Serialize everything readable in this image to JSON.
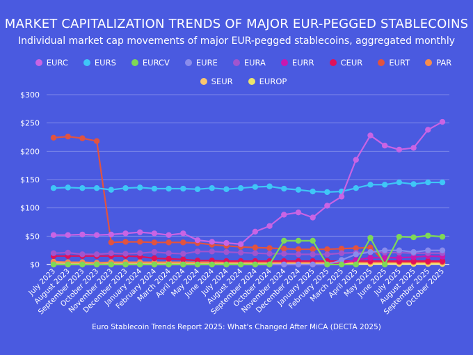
{
  "chart_data": {
    "type": "line",
    "title": "MARKET CAPITALIZATION TRENDS OF MAJOR EUR-PEGGED STABLECOINS",
    "subtitle": "Individual market cap movements of major EUR-pegged stablecoins, aggregated monthly",
    "footer": "Euro Stablecoin Trends Report 2025: What's Changed After MiCA (DECTA 2025)",
    "xlabel": "",
    "ylabel": "",
    "ylim": [
      0,
      300
    ],
    "yticks": [
      "$0",
      "$50",
      "$100",
      "$150",
      "$200",
      "$250",
      "$300"
    ],
    "grid": true,
    "legend_placement": "top",
    "x": [
      "July 2023",
      "August 2023",
      "September 2023",
      "October 2023",
      "November 2023",
      "December 2023",
      "January 2024",
      "February 2024",
      "March 2024",
      "April 2024",
      "May 2024",
      "June 2024",
      "July 2024",
      "August 2024",
      "September 2024",
      "October 2024",
      "November 2024",
      "December 2024",
      "January 2025",
      "February 2025",
      "March 2025",
      "April 2025",
      "May 2025",
      "June 2025",
      "July 2025",
      "August 2025",
      "September 2025",
      "October 2025"
    ],
    "series": [
      {
        "name": "EURC",
        "color": "#c964e4",
        "values": [
          52,
          52,
          53,
          52,
          53,
          55,
          57,
          55,
          52,
          55,
          43,
          40,
          38,
          36,
          58,
          68,
          88,
          92,
          83,
          104,
          120,
          185,
          228,
          210,
          203,
          206,
          238,
          252
        ]
      },
      {
        "name": "EURS",
        "color": "#3fc6f7",
        "values": [
          135,
          136,
          135,
          135,
          132,
          135,
          136,
          134,
          134,
          134,
          133,
          135,
          133,
          135,
          137,
          138,
          134,
          132,
          129,
          128,
          129,
          135,
          141,
          141,
          145,
          142,
          145,
          145
        ]
      },
      {
        "name": "EURCV",
        "color": "#7ed957",
        "values": [
          0,
          0,
          0,
          0,
          0,
          0,
          0,
          0,
          0,
          0,
          0,
          0,
          0,
          0,
          0,
          0,
          42,
          42,
          42,
          0,
          0,
          0,
          47,
          0,
          49,
          48,
          51,
          49
        ]
      },
      {
        "name": "EURE",
        "color": "#8a8cec",
        "values": [
          0,
          0,
          0,
          0,
          0,
          0,
          0,
          0,
          0,
          0,
          0,
          0,
          0,
          0,
          0,
          0,
          0,
          0,
          0,
          0,
          8,
          18,
          22,
          25,
          25,
          22,
          25,
          25
        ]
      },
      {
        "name": "EURA",
        "color": "#a055cf",
        "values": [
          20,
          21,
          18,
          18,
          20,
          19,
          20,
          22,
          20,
          19,
          23,
          23,
          22,
          21,
          20,
          19,
          19,
          18,
          18,
          18,
          20,
          21,
          22,
          21,
          21,
          20,
          20,
          20
        ]
      },
      {
        "name": "EURR",
        "color": "#c718b0",
        "values": [
          0,
          0,
          0,
          0,
          0,
          0,
          0,
          0,
          0,
          0,
          0,
          0,
          0,
          0,
          0,
          0,
          0,
          0,
          0,
          0,
          2,
          8,
          12,
          12,
          12,
          13,
          15,
          14
        ]
      },
      {
        "name": "CEUR",
        "color": "#e0105a",
        "values": [
          15,
          15,
          15,
          15,
          15,
          15,
          14,
          11,
          10,
          9,
          7,
          7,
          6,
          6,
          6,
          6,
          6,
          6,
          6,
          6,
          6,
          6,
          6,
          6,
          6,
          6,
          6,
          6
        ]
      },
      {
        "name": "EURT",
        "color": "#e2533f",
        "values": [
          224,
          226,
          223,
          218,
          39,
          40,
          40,
          39,
          39,
          39,
          38,
          35,
          33,
          31,
          30,
          29,
          28,
          27,
          27,
          27,
          28,
          29,
          30,
          5,
          5,
          5,
          5,
          5
        ]
      },
      {
        "name": "PAR",
        "color": "#f78c4c",
        "values": [
          5,
          4,
          4,
          3,
          4,
          4,
          4,
          4,
          4,
          4,
          4,
          4,
          4,
          4,
          4,
          4,
          4,
          4,
          4,
          4,
          4,
          4,
          4,
          4,
          4,
          4,
          4,
          4
        ]
      },
      {
        "name": "SEUR",
        "color": "#fac66e",
        "values": [
          4,
          3,
          3,
          2,
          3,
          3,
          3,
          3,
          3,
          3,
          3,
          3,
          3,
          3,
          3,
          3,
          3,
          3,
          3,
          3,
          3,
          3,
          3,
          3,
          3,
          3,
          3,
          3
        ]
      },
      {
        "name": "EUROP",
        "color": "#ece46a",
        "values": [
          1,
          1,
          1,
          1,
          1,
          1,
          1,
          1,
          1,
          1,
          1,
          1,
          1,
          1,
          1,
          1,
          1,
          1,
          1,
          1,
          1,
          1,
          1,
          1,
          1,
          1,
          1,
          1
        ]
      }
    ]
  }
}
